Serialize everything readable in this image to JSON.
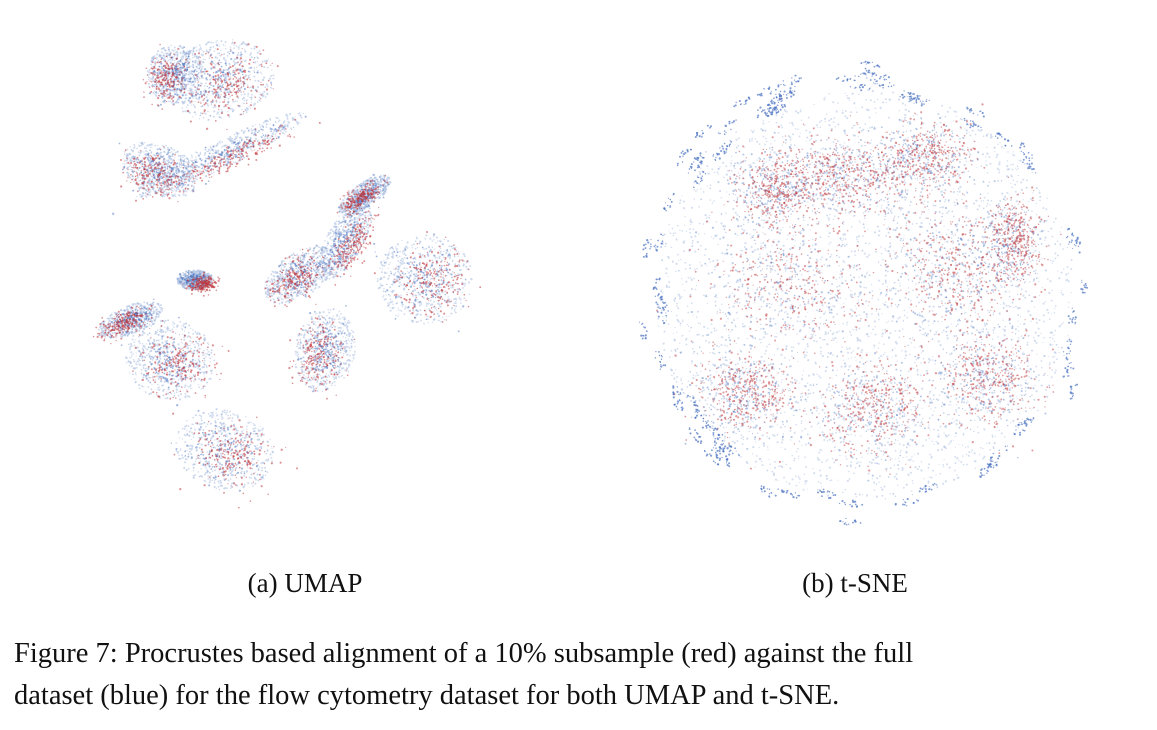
{
  "figure": {
    "subfigures": [
      {
        "caption": "(a) UMAP",
        "method": "UMAP"
      },
      {
        "caption": "(b) t-SNE",
        "method": "t-SNE"
      }
    ],
    "caption_lines": [
      "Figure 7: Procrustes based alignment of a 10% subsample (red) against the full",
      "dataset (blue) for the flow cytometry dataset for both UMAP and t-SNE."
    ]
  },
  "colors": {
    "full_dataset": "#4a72c0",
    "full_dataset_light": "#a9bde0",
    "subsample": "#c0353a",
    "background": "#ffffff"
  },
  "chart_data": [
    {
      "type": "scatter",
      "title": "",
      "xlabel": "",
      "ylabel": "",
      "axes": "none",
      "grid": false,
      "series": [
        {
          "name": "full dataset",
          "color": "#4a72c0"
        },
        {
          "name": "10% subsample",
          "color": "#c0353a"
        }
      ]
    },
    {
      "type": "scatter",
      "title": "",
      "xlabel": "",
      "ylabel": "",
      "axes": "none",
      "grid": false,
      "series": [
        {
          "name": "full dataset",
          "color": "#4a72c0"
        },
        {
          "name": "10% subsample",
          "color": "#c0353a"
        }
      ]
    }
  ]
}
